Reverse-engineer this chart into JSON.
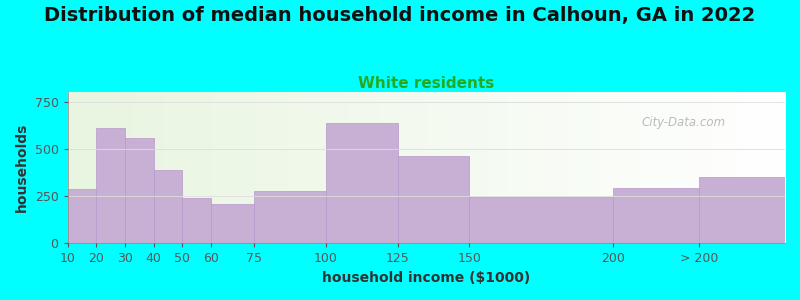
{
  "title": "Distribution of median household income in Calhoun, GA in 2022",
  "subtitle": "White residents",
  "xlabel": "household income ($1000)",
  "ylabel": "households",
  "background_color": "#00FFFF",
  "plot_bg_left_color": "#e8f5e0",
  "bar_color": "#c8afd4",
  "bar_edge_color": "#b898cc",
  "categories": [
    "10",
    "20",
    "30",
    "40",
    "50",
    "60",
    "75",
    "100",
    "125",
    "150",
    "200",
    "> 200"
  ],
  "values": [
    290,
    610,
    560,
    390,
    240,
    210,
    275,
    635,
    460,
    245,
    295,
    350
  ],
  "tick_positions": [
    10,
    20,
    30,
    40,
    50,
    60,
    75,
    100,
    125,
    150,
    200,
    230,
    260
  ],
  "ylim": [
    0,
    800
  ],
  "yticks": [
    0,
    250,
    500,
    750
  ],
  "title_fontsize": 14,
  "subtitle_fontsize": 11,
  "subtitle_color": "#22aa22",
  "axis_label_fontsize": 10,
  "tick_fontsize": 9,
  "watermark_text": "City-Data.com",
  "watermark_color": "#b0b0b0"
}
